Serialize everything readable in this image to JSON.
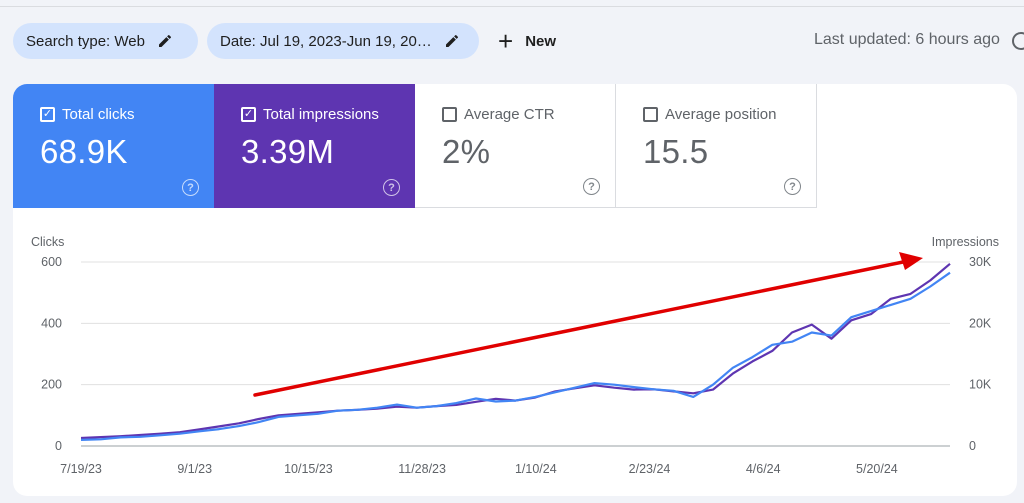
{
  "filters": {
    "search_type": "Search type: Web",
    "date": "Date: Jul 19, 2023-Jun 19, 20…",
    "new_label": "New"
  },
  "last_updated": "Last updated: 6 hours ago",
  "metrics": [
    {
      "label": "Total clicks",
      "value": "68.9K",
      "checked": true,
      "color": "#4285f4"
    },
    {
      "label": "Total impressions",
      "value": "3.39M",
      "checked": true,
      "color": "#5e35b1"
    },
    {
      "label": "Average CTR",
      "value": "2%",
      "checked": false
    },
    {
      "label": "Average position",
      "value": "15.5",
      "checked": false
    }
  ],
  "colors": {
    "clicks": "#4285f4",
    "impressions": "#5e35b1",
    "annotation_arrow": "#e00000"
  },
  "icons": [
    "edit-pencil-icon",
    "plus-icon",
    "help-icon",
    "checkbox-icon"
  ],
  "chart_data": {
    "type": "line",
    "y_left_label": "Clicks",
    "y_right_label": "Impressions",
    "y_left_ticks": [
      "0",
      "200",
      "400",
      "600"
    ],
    "y_right_ticks": [
      "0",
      "10K",
      "20K",
      "30K"
    ],
    "y_left_range": [
      0,
      600
    ],
    "y_right_range": [
      0,
      30000
    ],
    "x_ticks": [
      "7/19/23",
      "9/1/23",
      "10/15/23",
      "11/28/23",
      "1/10/24",
      "2/23/24",
      "4/6/24",
      "5/20/24"
    ],
    "x_range": [
      "7/19/23",
      "6/19/24"
    ],
    "grid": true,
    "annotation": "red trend arrow rising from about 10/1/23 to 6/1/24",
    "series": [
      {
        "name": "Clicks",
        "axis": "left",
        "color": "#4285f4",
        "values": [
          20,
          22,
          28,
          30,
          35,
          40,
          48,
          55,
          65,
          78,
          95,
          100,
          105,
          115,
          118,
          125,
          135,
          125,
          130,
          140,
          155,
          145,
          148,
          160,
          175,
          190,
          205,
          200,
          192,
          185,
          180,
          160,
          200,
          255,
          290,
          330,
          340,
          370,
          360,
          420,
          440,
          460,
          480,
          520,
          565
        ]
      },
      {
        "name": "Impressions",
        "axis": "right",
        "color": "#5e35b1",
        "values": [
          1300,
          1450,
          1600,
          1800,
          2000,
          2250,
          2700,
          3200,
          3700,
          4400,
          5000,
          5250,
          5500,
          5750,
          5900,
          6100,
          6400,
          6250,
          6500,
          6700,
          7200,
          7700,
          7400,
          7900,
          8900,
          9400,
          9900,
          9500,
          9200,
          9250,
          8900,
          8600,
          9200,
          11800,
          13800,
          15500,
          18500,
          19800,
          17500,
          20500,
          21500,
          24000,
          24800,
          27000,
          29700
        ]
      }
    ]
  }
}
